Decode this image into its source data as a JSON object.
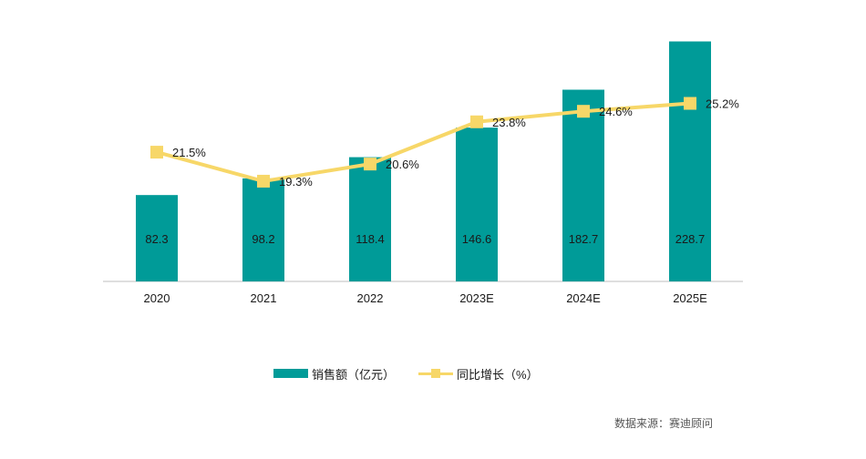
{
  "colors": {
    "bar": "#009B98",
    "line": "#F7D768",
    "axis": "#BFBFBF"
  },
  "legend": {
    "bar_label": "销售额（亿元）",
    "line_label": "同比增长（%）"
  },
  "source": "数据来源：赛迪顾问",
  "chart_data": {
    "type": "bar",
    "categories": [
      "2020",
      "2021",
      "2022",
      "2023E",
      "2024E",
      "2025E"
    ],
    "series": [
      {
        "name": "销售额（亿元）",
        "type": "bar",
        "values": [
          82.3,
          98.2,
          118.4,
          146.6,
          182.7,
          228.7
        ],
        "labels": [
          "82.3",
          "98.2",
          "118.4",
          "146.6",
          "182.7",
          "228.7"
        ]
      },
      {
        "name": "同比增长（%）",
        "type": "line",
        "values": [
          21.5,
          19.3,
          20.6,
          23.8,
          24.6,
          25.2
        ],
        "labels": [
          "21.5%",
          "19.3%",
          "20.6%",
          "23.8%",
          "24.6%",
          "25.2%"
        ]
      }
    ],
    "bar_range": [
      0,
      230
    ],
    "line_range": [
      11.7,
      30
    ],
    "grid": false,
    "legend_position": "bottom"
  }
}
